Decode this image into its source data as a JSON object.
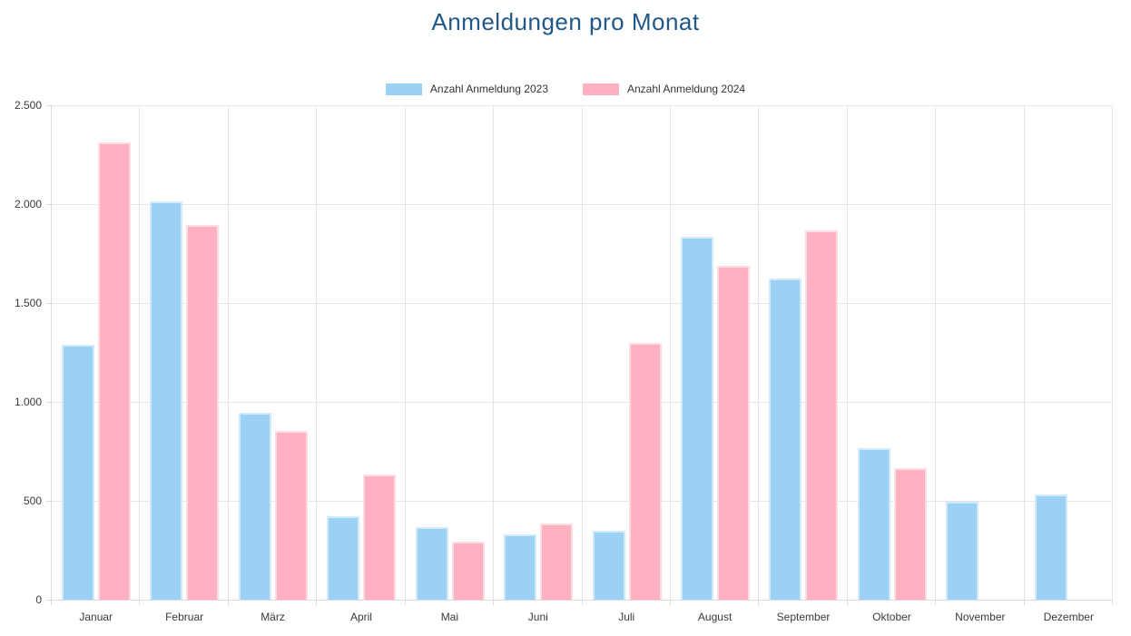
{
  "title": "Anmeldungen pro Monat",
  "title_color": "#20588A",
  "chart_data": {
    "type": "bar",
    "title": "Anmeldungen pro Monat",
    "categories": [
      "Januar",
      "Februar",
      "März",
      "April",
      "Mai",
      "Juni",
      "Juli",
      "August",
      "September",
      "Oktober",
      "November",
      "Dezember"
    ],
    "series": [
      {
        "name": "Anzahl Anmeldung 2023",
        "color": "#9AD1F5",
        "values": [
          1290,
          2015,
          945,
          420,
          365,
          330,
          350,
          1835,
          1625,
          765,
          495,
          530
        ]
      },
      {
        "name": "Anzahl Anmeldung 2024",
        "color": "#FFB1C1",
        "values": [
          2310,
          1895,
          855,
          635,
          295,
          385,
          1300,
          1690,
          1865,
          665,
          null,
          null
        ]
      }
    ],
    "xlabel": "",
    "ylabel": "",
    "ylim": [
      0,
      2500
    ],
    "ytick_values": [
      0,
      500,
      1000,
      1500,
      2000,
      2500
    ],
    "ytick_labels": [
      "0",
      "500",
      "1.000",
      "1.500",
      "2.000",
      "2.500"
    ],
    "grid": true,
    "legend_position": "top"
  }
}
